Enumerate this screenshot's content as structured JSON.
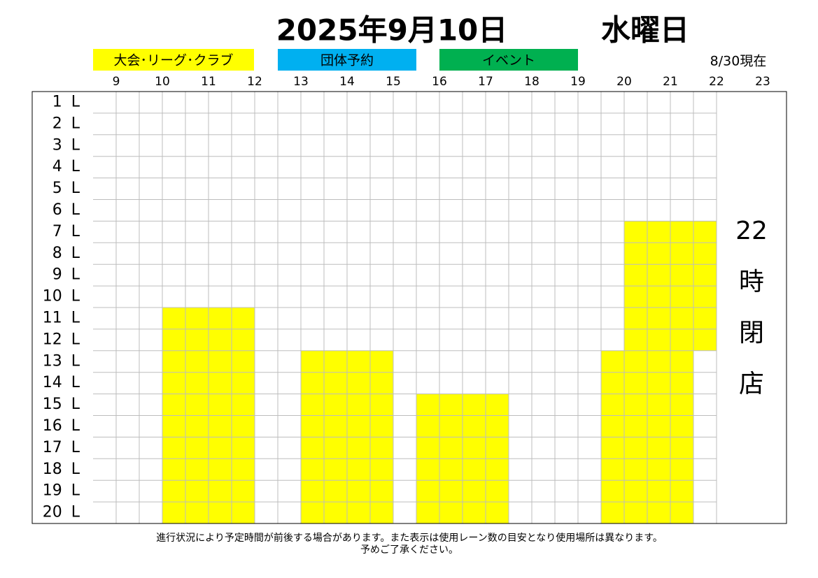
{
  "header": {
    "date": "2025年9月10日",
    "weekday": "水曜日",
    "as_of": "8/30現在"
  },
  "legend": [
    {
      "label": "大会･リーグ･クラブ",
      "color": "#ffff00"
    },
    {
      "label": "団体予約",
      "color": "#00b0f0"
    },
    {
      "label": "イベント",
      "color": "#00b050"
    }
  ],
  "schedule": {
    "time_range": [
      8.5,
      22
    ],
    "hours": [
      9,
      10,
      11,
      12,
      13,
      14,
      15,
      16,
      17,
      18,
      19,
      20,
      21,
      22,
      23
    ],
    "lanes": [
      "1 L",
      "2 L",
      "3 L",
      "4 L",
      "5 L",
      "6 L",
      "7 L",
      "8 L",
      "9 L",
      "10 L",
      "11 L",
      "12 L",
      "13 L",
      "14 L",
      "15 L",
      "16 L",
      "17 L",
      "18 L",
      "19 L",
      "20 L"
    ],
    "bookings": [
      {
        "start": 10,
        "end": 12,
        "lanes": [
          11,
          20
        ],
        "color": "#ffff00"
      },
      {
        "start": 13,
        "end": 15,
        "lanes": [
          13,
          20
        ],
        "color": "#ffff00"
      },
      {
        "start": 15.5,
        "end": 17.5,
        "lanes": [
          15,
          20
        ],
        "color": "#ffff00"
      },
      {
        "start": 20,
        "end": 22,
        "lanes": [
          7,
          12
        ],
        "color": "#ffff00"
      },
      {
        "start": 19.5,
        "end": 21.5,
        "lanes": [
          13,
          20
        ],
        "color": "#ffff00"
      }
    ],
    "closing_note": [
      "22",
      "時",
      "閉",
      "店"
    ]
  },
  "footer": [
    "進行状況により予定時間が前後する場合があります。また表示は使用レーン数の目安となり使用場所は異なります。",
    "予めご了承ください。"
  ]
}
